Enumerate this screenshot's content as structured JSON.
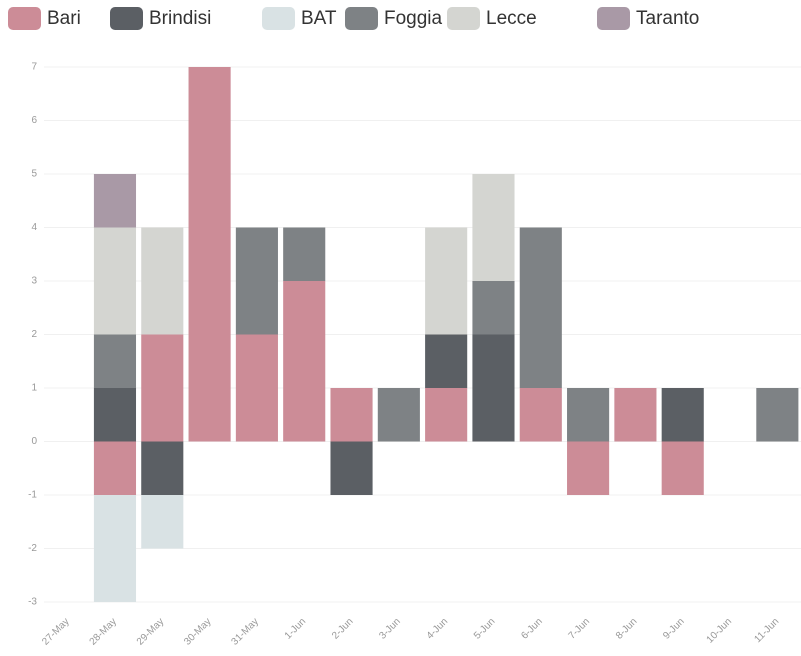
{
  "chart_data": {
    "type": "bar",
    "stacked": true,
    "categories": [
      "27-May",
      "28-May",
      "29-May",
      "30-May",
      "31-May",
      "1-Jun",
      "2-Jun",
      "3-Jun",
      "4-Jun",
      "5-Jun",
      "6-Jun",
      "7-Jun",
      "8-Jun",
      "9-Jun",
      "10-Jun",
      "11-Jun"
    ],
    "series": [
      {
        "name": "Bari",
        "color": "#cc8c97",
        "values": [
          0,
          -1,
          2,
          7,
          2,
          3,
          1,
          0,
          1,
          0,
          1,
          -1,
          1,
          -1,
          0,
          0
        ]
      },
      {
        "name": "Brindisi",
        "color": "#5b5f64",
        "values": [
          0,
          1,
          -1,
          0,
          0,
          0,
          -1,
          0,
          1,
          2,
          0,
          0,
          0,
          1,
          0,
          0
        ]
      },
      {
        "name": "BAT",
        "color": "#d9e2e4",
        "values": [
          0,
          -2,
          -1,
          0,
          0,
          0,
          0,
          0,
          0,
          0,
          0,
          0,
          0,
          0,
          0,
          0
        ]
      },
      {
        "name": "Foggia",
        "color": "#7e8285",
        "values": [
          0,
          1,
          0,
          0,
          2,
          1,
          0,
          1,
          0,
          1,
          3,
          1,
          0,
          0,
          0,
          1
        ]
      },
      {
        "name": "Lecce",
        "color": "#d4d5d1",
        "values": [
          0,
          2,
          2,
          0,
          0,
          0,
          0,
          0,
          2,
          2,
          0,
          0,
          0,
          0,
          0,
          0
        ]
      },
      {
        "name": "Taranto",
        "color": "#a999a6",
        "values": [
          0,
          1,
          0,
          0,
          0,
          0,
          0,
          0,
          0,
          0,
          0,
          0,
          0,
          0,
          0,
          0
        ]
      }
    ],
    "ylim": [
      -3,
      7
    ],
    "yticks": [
      -3,
      -2,
      -1,
      0,
      1,
      2,
      3,
      4,
      5,
      6,
      7
    ],
    "grid": true,
    "legend": "top"
  }
}
